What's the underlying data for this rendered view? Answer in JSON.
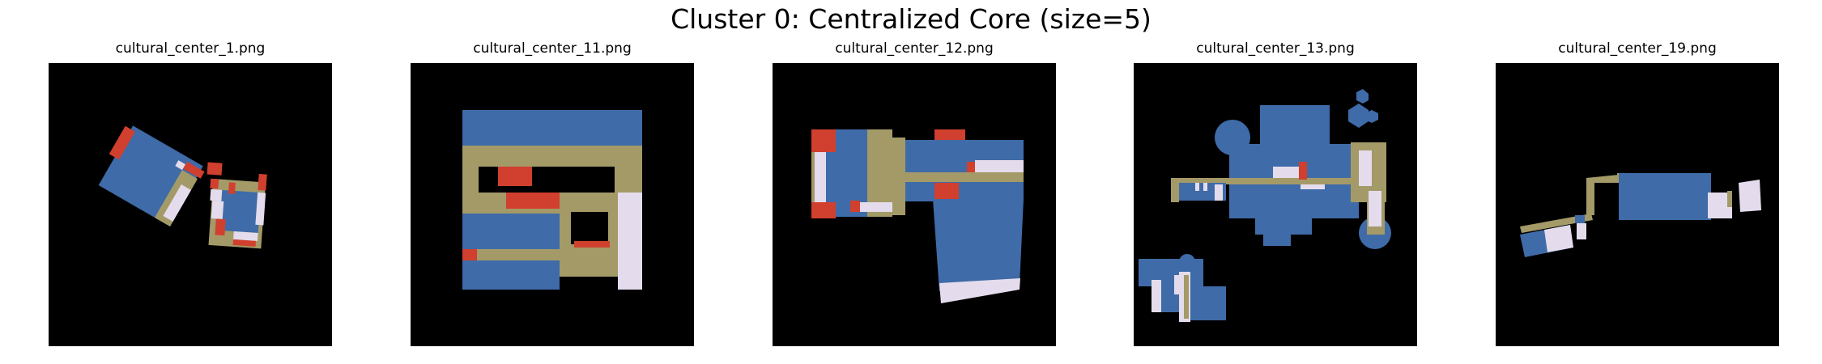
{
  "figure": {
    "title": "Cluster 0: Centralized Core (size=5)"
  },
  "colors": {
    "background": "#000000",
    "blue_rooms": "#3f6ba8",
    "corridor_khaki": "#a39a68",
    "red_rooms": "#d13f2e",
    "lavender_rooms": "#e4dcec"
  },
  "panels": [
    {
      "title": "cultural_center_1.png"
    },
    {
      "title": "cultural_center_11.png"
    },
    {
      "title": "cultural_center_12.png"
    },
    {
      "title": "cultural_center_13.png"
    },
    {
      "title": "cultural_center_19.png"
    }
  ]
}
